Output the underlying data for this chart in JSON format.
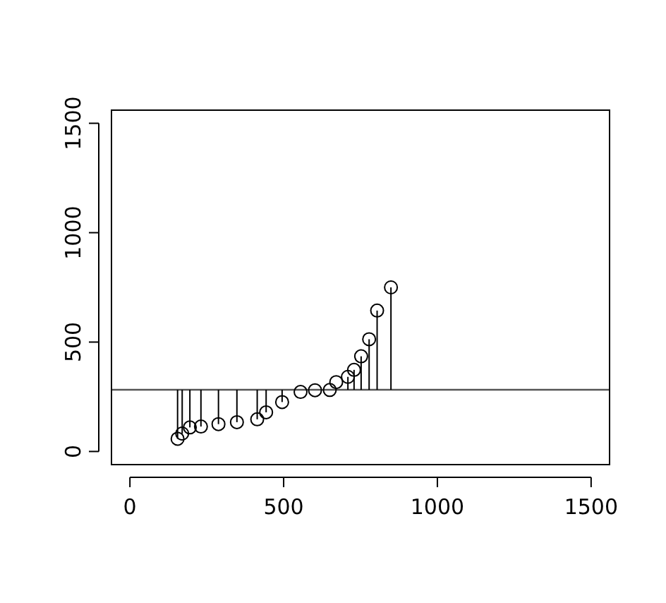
{
  "chart_data": {
    "type": "scatter",
    "x": [
      155,
      170,
      195,
      231,
      288,
      348,
      414,
      443,
      495,
      555,
      602,
      650,
      671,
      709,
      729,
      752,
      778,
      804,
      849
    ],
    "series": [
      {
        "color": "#000000",
        "values": [
          58,
          82,
          110,
          114,
          125,
          134,
          147,
          179,
          226,
          272,
          280,
          281,
          317,
          341,
          373,
          435,
          513,
          644,
          750
        ],
        "errors": [
          [
            58,
            282
          ],
          [
            82,
            282
          ],
          [
            110,
            282
          ],
          [
            114,
            282
          ],
          [
            125,
            282
          ],
          [
            134,
            282
          ],
          [
            147,
            282
          ],
          [
            179,
            282
          ],
          [
            226,
            282
          ],
          null,
          null,
          null,
          null,
          [
            282,
            341
          ],
          [
            282,
            373
          ],
          [
            282,
            435
          ],
          [
            282,
            513
          ],
          [
            282,
            644
          ],
          [
            282,
            750
          ]
        ]
      }
    ],
    "xlim": [
      -60,
      1560
    ],
    "ylim": [
      -60,
      1560
    ],
    "xticks": [
      0,
      500,
      1000,
      1500
    ],
    "yticks": [
      0,
      500,
      1000,
      1500
    ],
    "ref_lines": [
      {
        "axis": "y",
        "value": 282,
        "color": "#555555"
      }
    ],
    "marker": "circle",
    "grid": false
  }
}
